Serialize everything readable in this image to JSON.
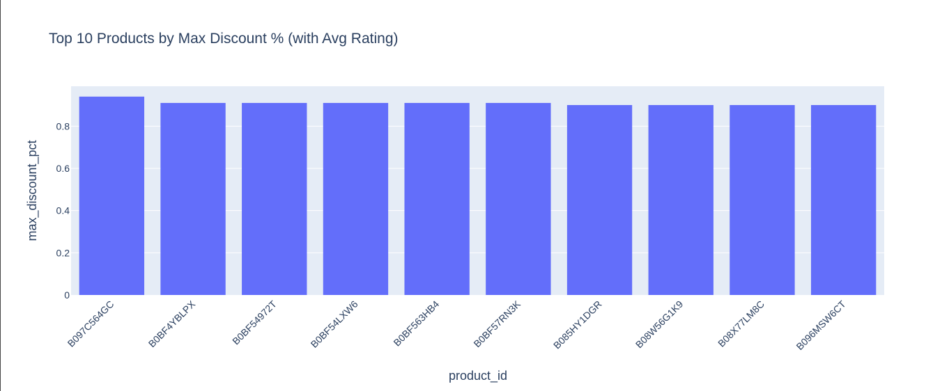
{
  "chart_data": {
    "type": "bar",
    "title": "Top 10 Products by Max Discount % (with Avg Rating)",
    "xlabel": "product_id",
    "ylabel": "max_discount_pct",
    "categories": [
      "B097C564GC",
      "B0BF4YBLPX",
      "B0BF54972T",
      "B0BF54LXW6",
      "B0BF563HB4",
      "B0BF57RN3K",
      "B085HY1DGR",
      "B08W56G1K9",
      "B08X77LM8C",
      "B096MSW6CT"
    ],
    "values": [
      0.94,
      0.91,
      0.91,
      0.91,
      0.91,
      0.91,
      0.9,
      0.9,
      0.9,
      0.9
    ],
    "ylim": [
      0,
      0.989
    ],
    "yticks": [
      "0",
      "0.2",
      "0.4",
      "0.6",
      "0.8"
    ],
    "grid": true,
    "bar_color": "#636efa",
    "plot_bg_color": "#e5ecf6",
    "text_color": "#2a3f5f"
  }
}
